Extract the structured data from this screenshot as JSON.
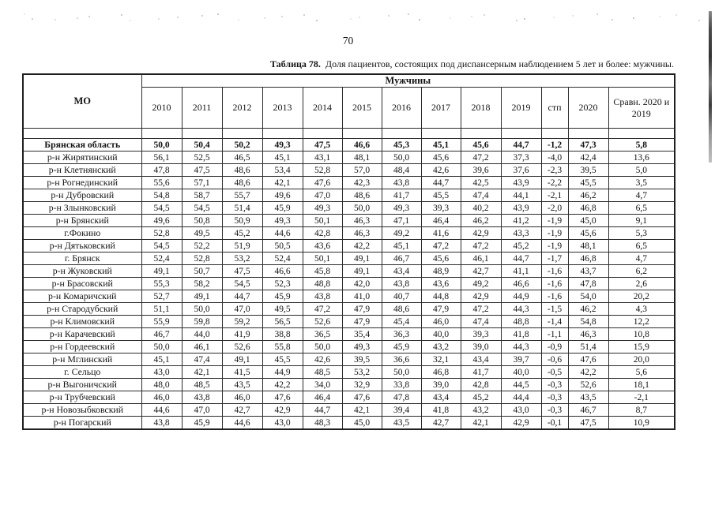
{
  "page": {
    "number": "70"
  },
  "table": {
    "caption_label": "Таблица 78.",
    "caption_text": "Доля пациентов, состоящих под диспансерным наблюдением 5 лет и более: мужчины.",
    "group_header": "Мужчины",
    "mo_header": "МО",
    "col_headers": [
      "2010",
      "2011",
      "2012",
      "2013",
      "2014",
      "2015",
      "2016",
      "2017",
      "2018",
      "2019",
      "стп",
      "2020",
      "Сравн. 2020 и 2019"
    ],
    "rows": [
      {
        "name": "Брянская область",
        "bold": true,
        "values": [
          "50,0",
          "50,4",
          "50,2",
          "49,3",
          "47,5",
          "46,6",
          "45,3",
          "45,1",
          "45,6",
          "44,7",
          "-1,2",
          "47,3",
          "5,8"
        ]
      },
      {
        "name": "р-н Жирятинский",
        "bold": false,
        "values": [
          "56,1",
          "52,5",
          "46,5",
          "45,1",
          "43,1",
          "48,1",
          "50,0",
          "45,6",
          "47,2",
          "37,3",
          "-4,0",
          "42,4",
          "13,6"
        ]
      },
      {
        "name": "р-н Клетнянский",
        "bold": false,
        "values": [
          "47,8",
          "47,5",
          "48,6",
          "53,4",
          "52,8",
          "57,0",
          "48,4",
          "42,6",
          "39,6",
          "37,6",
          "-2,3",
          "39,5",
          "5,0"
        ]
      },
      {
        "name": "р-н Рогнединский",
        "bold": false,
        "values": [
          "55,6",
          "57,1",
          "48,6",
          "42,1",
          "47,6",
          "42,3",
          "43,8",
          "44,7",
          "42,5",
          "43,9",
          "-2,2",
          "45,5",
          "3,5"
        ]
      },
      {
        "name": "р-н Дубровский",
        "bold": false,
        "values": [
          "54,8",
          "58,7",
          "55,7",
          "49,6",
          "47,0",
          "48,6",
          "41,7",
          "45,5",
          "47,4",
          "44,1",
          "-2,1",
          "46,2",
          "4,7"
        ]
      },
      {
        "name": "р-н Злынковский",
        "bold": false,
        "values": [
          "54,5",
          "54,5",
          "51,4",
          "45,9",
          "49,3",
          "50,0",
          "49,3",
          "39,3",
          "40,2",
          "43,9",
          "-2,0",
          "46,8",
          "6,5"
        ]
      },
      {
        "name": "р-н Брянский",
        "bold": false,
        "values": [
          "49,6",
          "50,8",
          "50,9",
          "49,3",
          "50,1",
          "46,3",
          "47,1",
          "46,4",
          "46,2",
          "41,2",
          "-1,9",
          "45,0",
          "9,1"
        ]
      },
      {
        "name": "г.Фокино",
        "bold": false,
        "values": [
          "52,8",
          "49,5",
          "45,2",
          "44,6",
          "42,8",
          "46,3",
          "49,2",
          "41,6",
          "42,9",
          "43,3",
          "-1,9",
          "45,6",
          "5,3"
        ]
      },
      {
        "name": "р-н Дятьковский",
        "bold": false,
        "values": [
          "54,5",
          "52,2",
          "51,9",
          "50,5",
          "43,6",
          "42,2",
          "45,1",
          "47,2",
          "47,2",
          "45,2",
          "-1,9",
          "48,1",
          "6,5"
        ]
      },
      {
        "name": "г. Брянск",
        "bold": false,
        "values": [
          "52,4",
          "52,8",
          "53,2",
          "52,4",
          "50,1",
          "49,1",
          "46,7",
          "45,6",
          "46,1",
          "44,7",
          "-1,7",
          "46,8",
          "4,7"
        ]
      },
      {
        "name": "р-н Жуковский",
        "bold": false,
        "values": [
          "49,1",
          "50,7",
          "47,5",
          "46,6",
          "45,8",
          "49,1",
          "43,4",
          "48,9",
          "42,7",
          "41,1",
          "-1,6",
          "43,7",
          "6,2"
        ]
      },
      {
        "name": "р-н Брасовский",
        "bold": false,
        "values": [
          "55,3",
          "58,2",
          "54,5",
          "52,3",
          "48,8",
          "42,0",
          "43,8",
          "43,6",
          "49,2",
          "46,6",
          "-1,6",
          "47,8",
          "2,6"
        ]
      },
      {
        "name": "р-н Комаричский",
        "bold": false,
        "values": [
          "52,7",
          "49,1",
          "44,7",
          "45,9",
          "43,8",
          "41,0",
          "40,7",
          "44,8",
          "42,9",
          "44,9",
          "-1,6",
          "54,0",
          "20,2"
        ]
      },
      {
        "name": "р-н Стародубский",
        "bold": false,
        "values": [
          "51,1",
          "50,0",
          "47,0",
          "49,5",
          "47,2",
          "47,9",
          "48,6",
          "47,9",
          "47,2",
          "44,3",
          "-1,5",
          "46,2",
          "4,3"
        ]
      },
      {
        "name": "р-н Климовский",
        "bold": false,
        "values": [
          "55,9",
          "59,8",
          "59,2",
          "56,5",
          "52,6",
          "47,9",
          "45,4",
          "46,0",
          "47,4",
          "48,8",
          "-1,4",
          "54,8",
          "12,2"
        ]
      },
      {
        "name": "р-н Карачевский",
        "bold": false,
        "values": [
          "46,7",
          "44,0",
          "41,9",
          "38,8",
          "36,5",
          "35,4",
          "36,3",
          "40,0",
          "39,3",
          "41,8",
          "-1,1",
          "46,3",
          "10,8"
        ]
      },
      {
        "name": "р-н Гордеевский",
        "bold": false,
        "values": [
          "50,0",
          "46,1",
          "52,6",
          "55,8",
          "50,0",
          "49,3",
          "45,9",
          "43,2",
          "39,0",
          "44,3",
          "-0,9",
          "51,4",
          "15,9"
        ]
      },
      {
        "name": "р-н Мглинский",
        "bold": false,
        "values": [
          "45,1",
          "47,4",
          "49,1",
          "45,5",
          "42,6",
          "39,5",
          "36,6",
          "32,1",
          "43,4",
          "39,7",
          "-0,6",
          "47,6",
          "20,0"
        ]
      },
      {
        "name": "г. Сельцо",
        "bold": false,
        "values": [
          "43,0",
          "42,1",
          "41,5",
          "44,9",
          "48,5",
          "53,2",
          "50,0",
          "46,8",
          "41,7",
          "40,0",
          "-0,5",
          "42,2",
          "5,6"
        ]
      },
      {
        "name": "р-н Выгоничский",
        "bold": false,
        "values": [
          "48,0",
          "48,5",
          "43,5",
          "42,2",
          "34,0",
          "32,9",
          "33,8",
          "39,0",
          "42,8",
          "44,5",
          "-0,3",
          "52,6",
          "18,1"
        ]
      },
      {
        "name": "р-н Трубчевский",
        "bold": false,
        "values": [
          "46,0",
          "43,8",
          "46,0",
          "47,6",
          "46,4",
          "47,6",
          "47,8",
          "43,4",
          "45,2",
          "44,4",
          "-0,3",
          "43,5",
          "-2,1"
        ]
      },
      {
        "name": "р-н Новозыбковский",
        "bold": false,
        "values": [
          "44,6",
          "47,0",
          "42,7",
          "42,9",
          "44,7",
          "42,1",
          "39,4",
          "41,8",
          "43,2",
          "43,0",
          "-0,3",
          "46,7",
          "8,7"
        ]
      },
      {
        "name": "р-н Погарский",
        "bold": false,
        "values": [
          "43,8",
          "45,9",
          "44,6",
          "43,0",
          "48,3",
          "45,0",
          "43,5",
          "42,7",
          "42,1",
          "42,9",
          "-0,1",
          "47,5",
          "10,9"
        ]
      }
    ]
  }
}
